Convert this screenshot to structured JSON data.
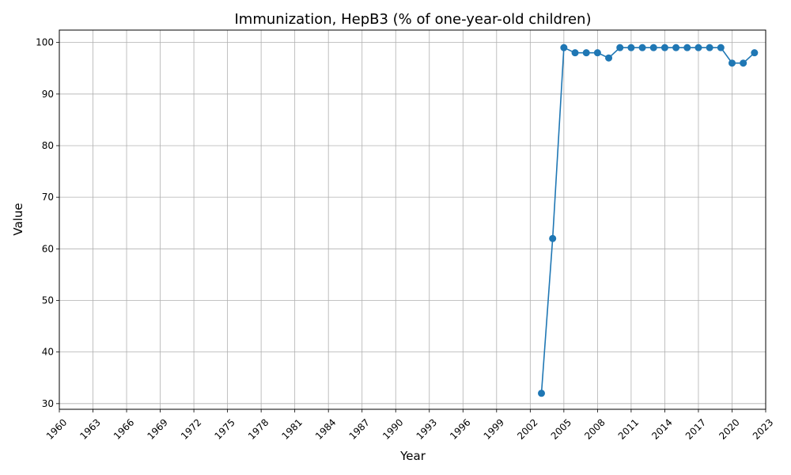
{
  "chart_data": {
    "type": "line",
    "title": "Immunization, HepB3 (% of one-year-old children)",
    "xlabel": "Year",
    "ylabel": "Value",
    "xlim": [
      1960,
      2023
    ],
    "ylim": [
      28.9,
      102.4
    ],
    "grid": true,
    "x_ticks": [
      1960,
      1963,
      1966,
      1969,
      1972,
      1975,
      1978,
      1981,
      1984,
      1987,
      1990,
      1993,
      1996,
      1999,
      2002,
      2005,
      2008,
      2011,
      2014,
      2017,
      2020,
      2023
    ],
    "y_ticks": [
      30,
      40,
      50,
      60,
      70,
      80,
      90,
      100
    ],
    "series": [
      {
        "color": "#1f77b4",
        "x": [
          2003,
          2004,
          2005,
          2006,
          2007,
          2008,
          2009,
          2010,
          2011,
          2012,
          2013,
          2014,
          2015,
          2016,
          2017,
          2018,
          2019,
          2020,
          2021,
          2022
        ],
        "y": [
          32,
          62,
          99,
          98,
          98,
          98,
          97,
          99,
          99,
          99,
          99,
          99,
          99,
          99,
          99,
          99,
          99,
          96,
          96,
          98
        ]
      }
    ]
  }
}
